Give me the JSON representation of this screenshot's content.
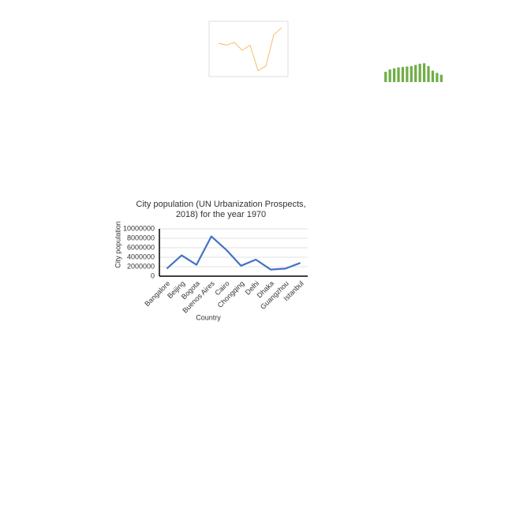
{
  "chart_data": [
    {
      "type": "line",
      "title": "City population (UN Urbanization Prospects, 2018) for the year 1970",
      "xlabel": "Country",
      "ylabel": "City population",
      "categories": [
        "Bangalore",
        "Beijing",
        "Bogota",
        "Buenos Aires",
        "Cairo",
        "Chongqing",
        "Delhi",
        "Dhaka",
        "Guangzhou",
        "Istanbul"
      ],
      "values": [
        1600000,
        4400000,
        2400000,
        8400000,
        5600000,
        2200000,
        3500000,
        1400000,
        1600000,
        2800000
      ],
      "color": "#4472c4",
      "ylim": [
        0,
        10000000
      ],
      "yticks": [
        0,
        2000000,
        4000000,
        6000000,
        8000000,
        10000000
      ],
      "grid": true
    },
    {
      "type": "line",
      "values": [
        62,
        58,
        64,
        47,
        58,
        4,
        14,
        80,
        95
      ],
      "color": "#f0b04a",
      "ylim": [
        0,
        100
      ]
    },
    {
      "type": "bar",
      "values": [
        45,
        55,
        60,
        64,
        66,
        68,
        70,
        75,
        80,
        82,
        70,
        50,
        40,
        32
      ],
      "color": "#70ad47",
      "ylim": [
        0,
        100
      ]
    }
  ]
}
